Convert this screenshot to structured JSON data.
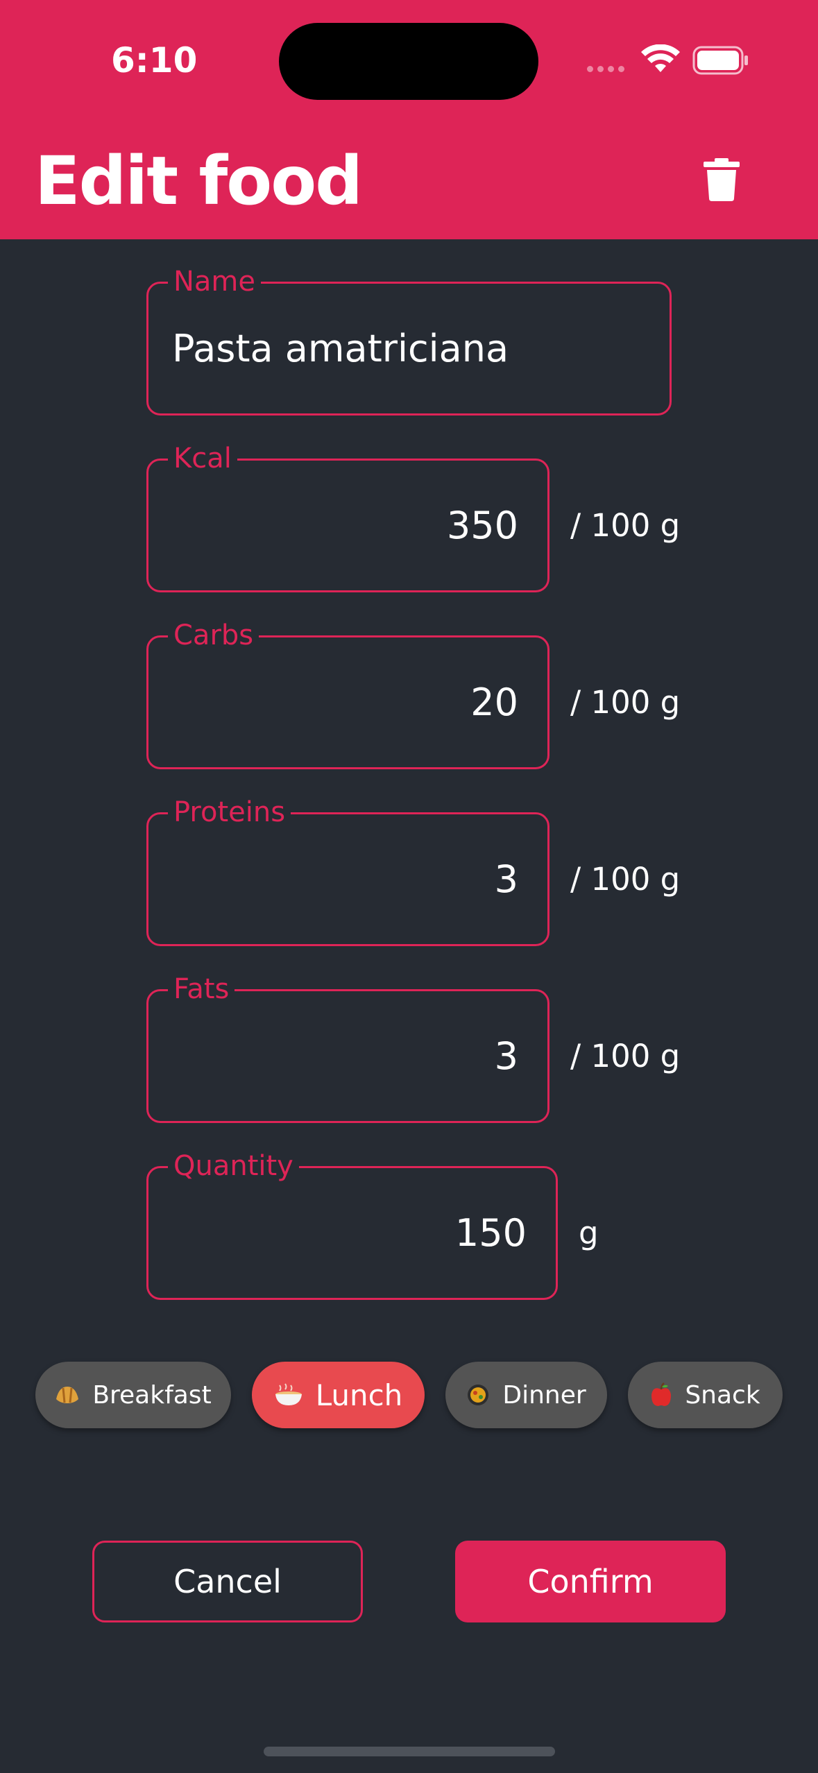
{
  "status_bar": {
    "time": "6:10"
  },
  "header": {
    "title": "Edit food",
    "delete_icon": "trash-icon"
  },
  "form": {
    "name": {
      "label": "Name",
      "value": "Pasta amatriciana"
    },
    "kcal": {
      "label": "Kcal",
      "value": "350",
      "unit": "/ 100 g"
    },
    "carbs": {
      "label": "Carbs",
      "value": "20",
      "unit": "/ 100 g"
    },
    "proteins": {
      "label": "Proteins",
      "value": "3",
      "unit": "/ 100 g"
    },
    "fats": {
      "label": "Fats",
      "value": "3",
      "unit": "/ 100 g"
    },
    "quantity": {
      "label": "Quantity",
      "value": "150",
      "unit": "g"
    }
  },
  "meals": [
    {
      "label": "Breakfast",
      "icon": "croissant-icon",
      "selected": false
    },
    {
      "label": "Lunch",
      "icon": "bowl-icon",
      "selected": true
    },
    {
      "label": "Dinner",
      "icon": "paella-icon",
      "selected": false
    },
    {
      "label": "Snack",
      "icon": "apple-icon",
      "selected": false
    }
  ],
  "actions": {
    "cancel": "Cancel",
    "confirm": "Confirm"
  },
  "colors": {
    "accent": "#de2457",
    "background": "#262b33",
    "chip": "#545454",
    "chip_active": "#e84a4f"
  }
}
